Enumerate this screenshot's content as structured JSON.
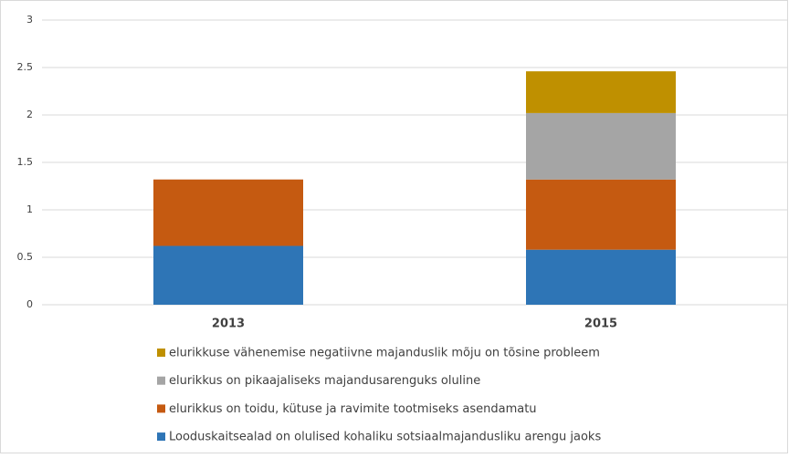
{
  "chart_data": {
    "type": "stacked-bar",
    "categories": [
      "2013",
      "2015"
    ],
    "series": [
      {
        "name": "Looduskaitsealad on olulised kohaliku sotsiaalmajandusliku arengu jaoks",
        "color": "#2e75b6",
        "values": [
          0.62,
          0.58
        ]
      },
      {
        "name": "elurikkus on toidu, kütuse ja ravimite tootmiseks asendamatu",
        "color": "#c55a11",
        "values": [
          0.7,
          0.74
        ]
      },
      {
        "name": "elurikkus on pikaajaliseks majandusarenguks oluline",
        "color": "#a5a5a5",
        "values": [
          0,
          0.7
        ]
      },
      {
        "name": "elurikkuse vähenemise negatiivne majanduslik mõju on tõsine probleem",
        "color": "#bf9000",
        "values": [
          0,
          0.44
        ]
      }
    ],
    "ylim": [
      0,
      3
    ],
    "yticks": [
      0,
      0.5,
      1,
      1.5,
      2,
      2.5,
      3
    ],
    "grid": true
  }
}
